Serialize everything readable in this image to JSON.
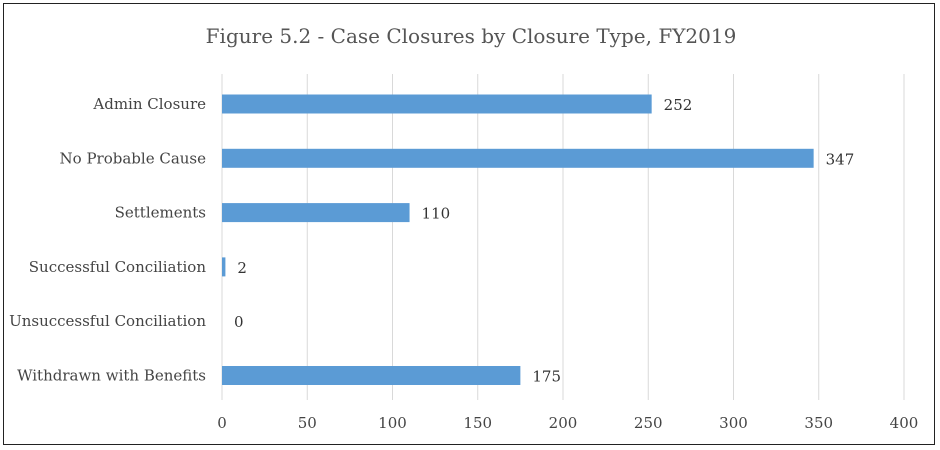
{
  "chart_data": {
    "type": "bar",
    "orientation": "horizontal",
    "title": "Figure 5.2 - Case Closures by Closure Type, FY2019",
    "categories": [
      "Admin Closure",
      "No Probable Cause",
      "Settlements",
      "Successful Conciliation",
      "Unsuccessful Conciliation",
      "Withdrawn with Benefits"
    ],
    "values": [
      252,
      347,
      110,
      2,
      0,
      175
    ],
    "xlim": [
      0,
      400
    ],
    "xticks": [
      0,
      50,
      100,
      150,
      200,
      250,
      300,
      350,
      400
    ],
    "grid": "vertical",
    "legend": "none",
    "bar_color": "#5b9bd5"
  }
}
